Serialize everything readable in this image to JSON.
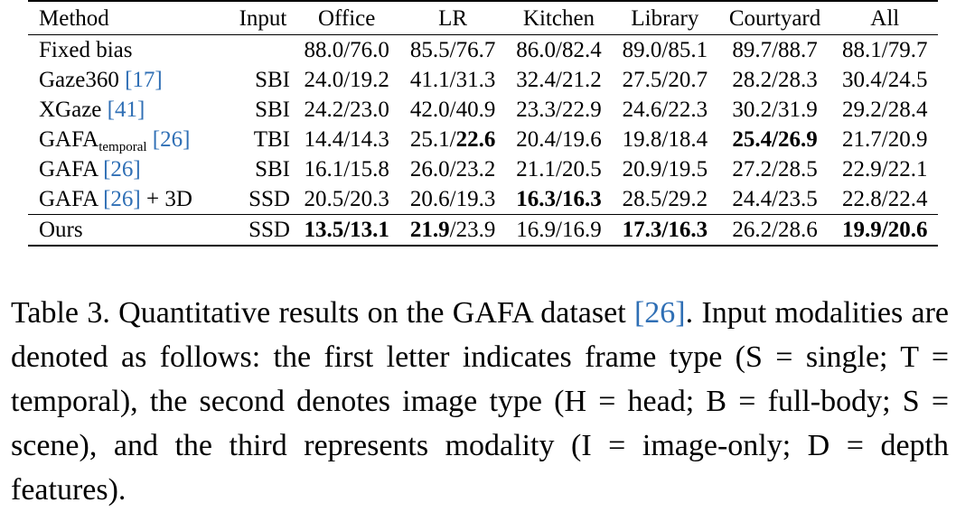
{
  "table": {
    "headers": [
      "Method",
      "Input",
      "Office",
      "LR",
      "Kitchen",
      "Library",
      "Courtyard",
      "All"
    ],
    "rows": [
      {
        "method": "Fixed bias",
        "sub": "",
        "cite": "",
        "suffix": "",
        "input": "",
        "cells": [
          {
            "a": "88.0",
            "b": "76.0",
            "ab": false,
            "bb": false
          },
          {
            "a": "85.5",
            "b": "76.7",
            "ab": false,
            "bb": false
          },
          {
            "a": "86.0",
            "b": "82.4",
            "ab": false,
            "bb": false
          },
          {
            "a": "89.0",
            "b": "85.1",
            "ab": false,
            "bb": false
          },
          {
            "a": "89.7",
            "b": "88.7",
            "ab": false,
            "bb": false
          },
          {
            "a": "88.1",
            "b": "79.7",
            "ab": false,
            "bb": false
          }
        ]
      },
      {
        "method": "Gaze360 ",
        "sub": "",
        "cite": "[17]",
        "suffix": "",
        "input": "SBI",
        "cells": [
          {
            "a": "24.0",
            "b": "19.2",
            "ab": false,
            "bb": false
          },
          {
            "a": "41.1",
            "b": "31.3",
            "ab": false,
            "bb": false
          },
          {
            "a": "32.4",
            "b": "21.2",
            "ab": false,
            "bb": false
          },
          {
            "a": "27.5",
            "b": "20.7",
            "ab": false,
            "bb": false
          },
          {
            "a": "28.2",
            "b": "28.3",
            "ab": false,
            "bb": false
          },
          {
            "a": "30.4",
            "b": "24.5",
            "ab": false,
            "bb": false
          }
        ]
      },
      {
        "method": "XGaze ",
        "sub": "",
        "cite": "[41]",
        "suffix": "",
        "input": "SBI",
        "cells": [
          {
            "a": "24.2",
            "b": "23.0",
            "ab": false,
            "bb": false
          },
          {
            "a": "42.0",
            "b": "40.9",
            "ab": false,
            "bb": false
          },
          {
            "a": "23.3",
            "b": "22.9",
            "ab": false,
            "bb": false
          },
          {
            "a": "24.6",
            "b": "22.3",
            "ab": false,
            "bb": false
          },
          {
            "a": "30.2",
            "b": "31.9",
            "ab": false,
            "bb": false
          },
          {
            "a": "29.2",
            "b": "28.4",
            "ab": false,
            "bb": false
          }
        ]
      },
      {
        "method": "GAFA",
        "sub": "temporal",
        "cite": "[26]",
        "suffix": "",
        "input": "TBI",
        "cells": [
          {
            "a": "14.4",
            "b": "14.3",
            "ab": false,
            "bb": false
          },
          {
            "a": "25.1",
            "b": "22.6",
            "ab": false,
            "bb": true
          },
          {
            "a": "20.4",
            "b": "19.6",
            "ab": false,
            "bb": false
          },
          {
            "a": "19.8",
            "b": "18.4",
            "ab": false,
            "bb": false
          },
          {
            "a": "25.4",
            "b": "26.9",
            "ab": true,
            "bb": true
          },
          {
            "a": "21.7",
            "b": "20.9",
            "ab": false,
            "bb": false
          }
        ]
      },
      {
        "method": "GAFA ",
        "sub": "",
        "cite": "[26]",
        "suffix": "",
        "input": "SBI",
        "cells": [
          {
            "a": "16.1",
            "b": "15.8",
            "ab": false,
            "bb": false
          },
          {
            "a": "26.0",
            "b": "23.2",
            "ab": false,
            "bb": false
          },
          {
            "a": "21.1",
            "b": "20.5",
            "ab": false,
            "bb": false
          },
          {
            "a": "20.9",
            "b": "19.5",
            "ab": false,
            "bb": false
          },
          {
            "a": "27.2",
            "b": "28.5",
            "ab": false,
            "bb": false
          },
          {
            "a": "22.9",
            "b": "22.1",
            "ab": false,
            "bb": false
          }
        ]
      },
      {
        "method": "GAFA ",
        "sub": "",
        "cite": "[26]",
        "suffix": " + 3D",
        "input": "SSD",
        "cells": [
          {
            "a": "20.5",
            "b": "20.3",
            "ab": false,
            "bb": false
          },
          {
            "a": "20.6",
            "b": "19.3",
            "ab": false,
            "bb": false
          },
          {
            "a": "16.3",
            "b": "16.3",
            "ab": true,
            "bb": true
          },
          {
            "a": "28.5",
            "b": "29.2",
            "ab": false,
            "bb": false
          },
          {
            "a": "24.4",
            "b": "23.5",
            "ab": false,
            "bb": false
          },
          {
            "a": "22.8",
            "b": "22.4",
            "ab": false,
            "bb": false
          }
        ]
      },
      {
        "method": "Ours",
        "sub": "",
        "cite": "",
        "suffix": "",
        "input": "SSD",
        "cells": [
          {
            "a": "13.5",
            "b": "13.1",
            "ab": true,
            "bb": true
          },
          {
            "a": "21.9",
            "b": "23.9",
            "ab": true,
            "bb": false
          },
          {
            "a": "16.9",
            "b": "16.9",
            "ab": false,
            "bb": false
          },
          {
            "a": "17.3",
            "b": "16.3",
            "ab": true,
            "bb": true
          },
          {
            "a": "26.2",
            "b": "28.6",
            "ab": false,
            "bb": false
          },
          {
            "a": "19.9",
            "b": "20.6",
            "ab": true,
            "bb": true
          }
        ]
      }
    ]
  },
  "caption": {
    "before": "Table 3. Quantitative results on the GAFA dataset ",
    "cite": "[26]",
    "after": ". Input modalities are denoted as follows: the first letter indicates frame type (S = single; T = temporal), the second denotes image type (H = head; B = full-body; S = scene), and the third represents modality (I = image-only; D = depth features)."
  },
  "colors": {
    "citation": "#2f6fb5",
    "text": "#000000"
  }
}
